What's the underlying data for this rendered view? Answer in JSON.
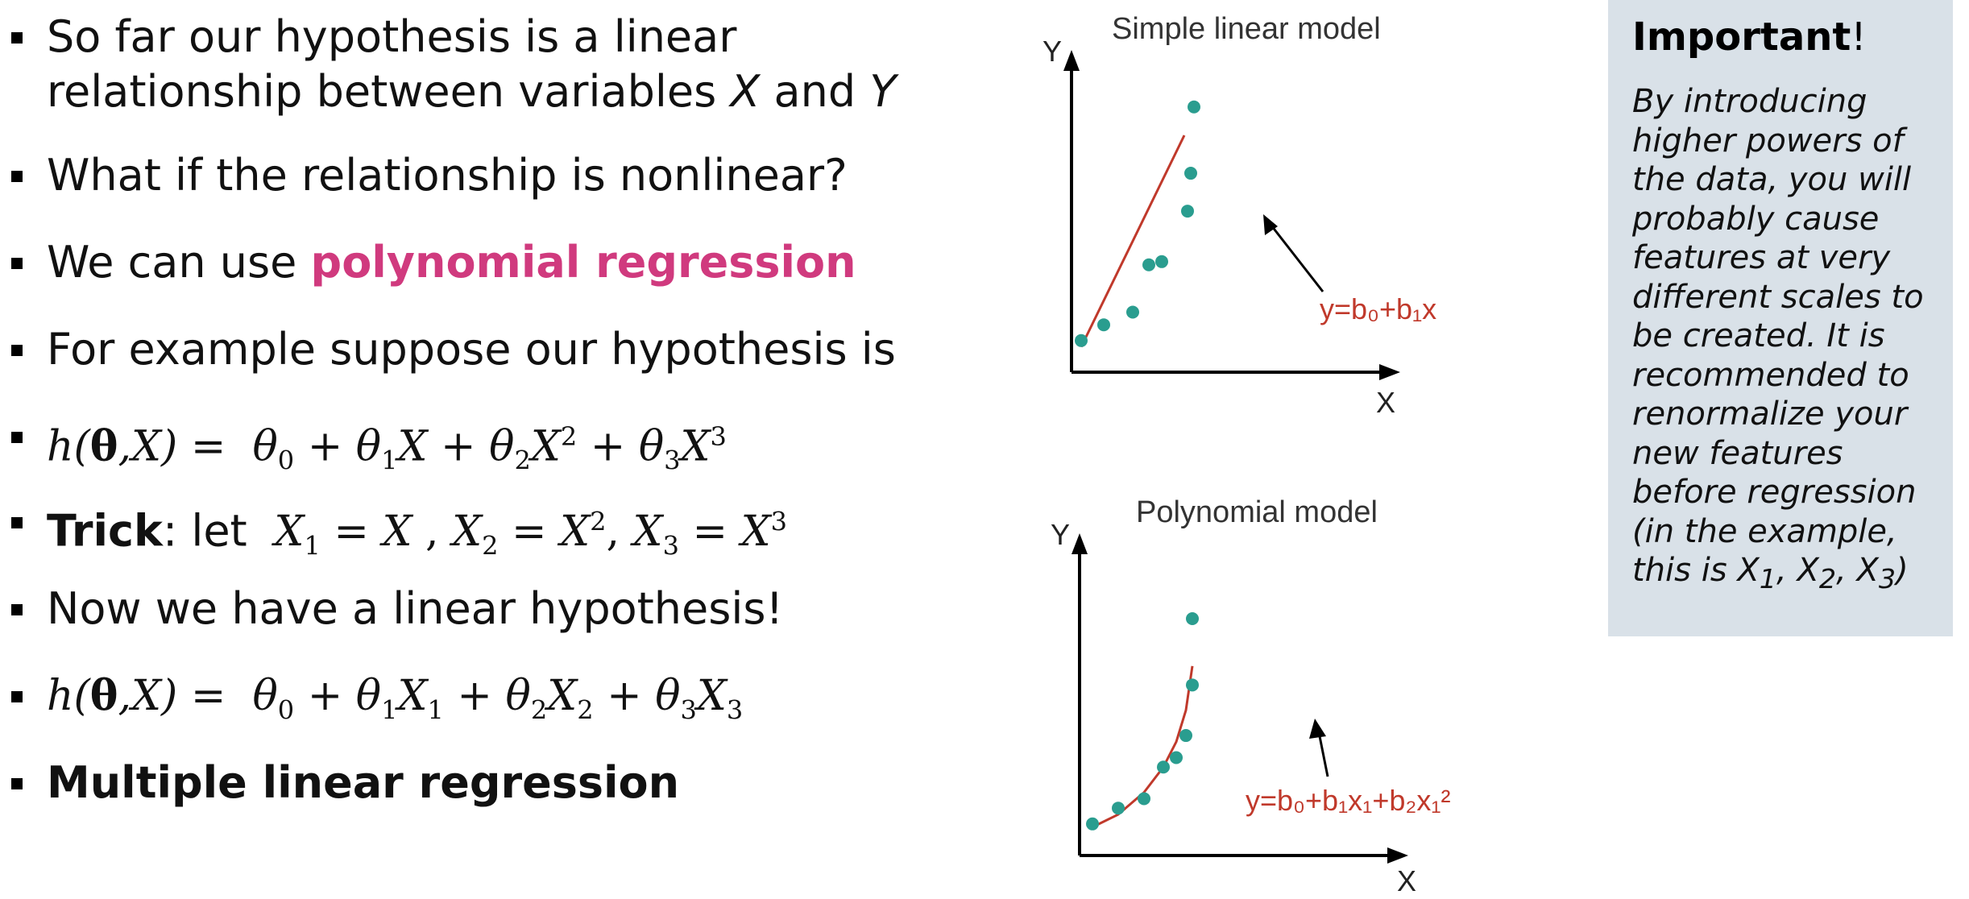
{
  "bullets": {
    "b1_line1": "So far our hypothesis is a linear",
    "b1_line2_pre": "relationship between variables ",
    "b1_x": "X",
    "b1_and": " and ",
    "b1_y": "Y",
    "b2": "What if the relationship is nonlinear?",
    "b3_pre": "We can use ",
    "b3_accent": "polynomial regression",
    "b4": "For example suppose our hypothesis is",
    "b6_bold": "Trick",
    "b6_rest": ": let",
    "b7": "Now we have a linear hypothesis!",
    "b9": "Multiple linear regression"
  },
  "charts": {
    "linear": {
      "title": "Simple linear model",
      "xlabel": "X",
      "ylabel": "Y",
      "equation_label": "y=b₀+b₁x"
    },
    "poly": {
      "title": "Polynomial model",
      "xlabel": "X",
      "ylabel": "Y",
      "equation_label": "y=b₀+b₁x₁+b₂x₁²"
    },
    "point_color": "#2a9d8f",
    "line_color": "#c0392b"
  },
  "chart_data": [
    {
      "type": "scatter",
      "title": "Simple linear model",
      "xlabel": "X",
      "ylabel": "Y",
      "xlim": [
        0,
        10
      ],
      "ylim": [
        0,
        10
      ],
      "grid": false,
      "series": [
        {
          "values": [
            [
              0.3,
              1.0
            ],
            [
              1.0,
              1.5
            ],
            [
              1.9,
              1.9
            ],
            [
              2.4,
              3.4
            ],
            [
              2.8,
              3.5
            ],
            [
              3.6,
              5.1
            ],
            [
              3.7,
              6.3
            ],
            [
              3.8,
              8.4
            ]
          ]
        },
        {
          "kind": "line",
          "values": [
            [
              0.3,
              0.8
            ],
            [
              3.5,
              7.5
            ]
          ]
        }
      ],
      "annotations": [
        "y=b₀+b₁x"
      ]
    },
    {
      "type": "scatter",
      "title": "Polynomial model",
      "xlabel": "X",
      "ylabel": "Y",
      "xlim": [
        0,
        10
      ],
      "ylim": [
        0,
        10
      ],
      "grid": false,
      "series": [
        {
          "values": [
            [
              0.4,
              1.0
            ],
            [
              1.2,
              1.5
            ],
            [
              2.0,
              1.8
            ],
            [
              2.6,
              2.8
            ],
            [
              3.0,
              3.1
            ],
            [
              3.3,
              3.8
            ],
            [
              3.5,
              5.4
            ],
            [
              3.5,
              7.5
            ]
          ]
        },
        {
          "kind": "line",
          "values": [
            [
              0.4,
              0.9
            ],
            [
              1.2,
              1.3
            ],
            [
              2.0,
              2.0
            ],
            [
              2.6,
              2.8
            ],
            [
              3.0,
              3.6
            ],
            [
              3.3,
              4.6
            ],
            [
              3.5,
              6.0
            ]
          ]
        }
      ],
      "annotations": [
        "y=b₀+b₁x₁+b₂x₁²"
      ]
    }
  ],
  "note": {
    "title": "Important",
    "title_bang": "!",
    "body_1": "By introducing higher powers of the data, you will probably cause features at very different scales to be created. It is recommended to renormalize your new features before regression (in the example, this is ",
    "x1": "X",
    "x1_sub": "1",
    "sep1": ", ",
    "x2": "X",
    "x2_sub": "2",
    "sep2": ", ",
    "x3": "X",
    "x3_sub": "3",
    "body_end": ")"
  }
}
